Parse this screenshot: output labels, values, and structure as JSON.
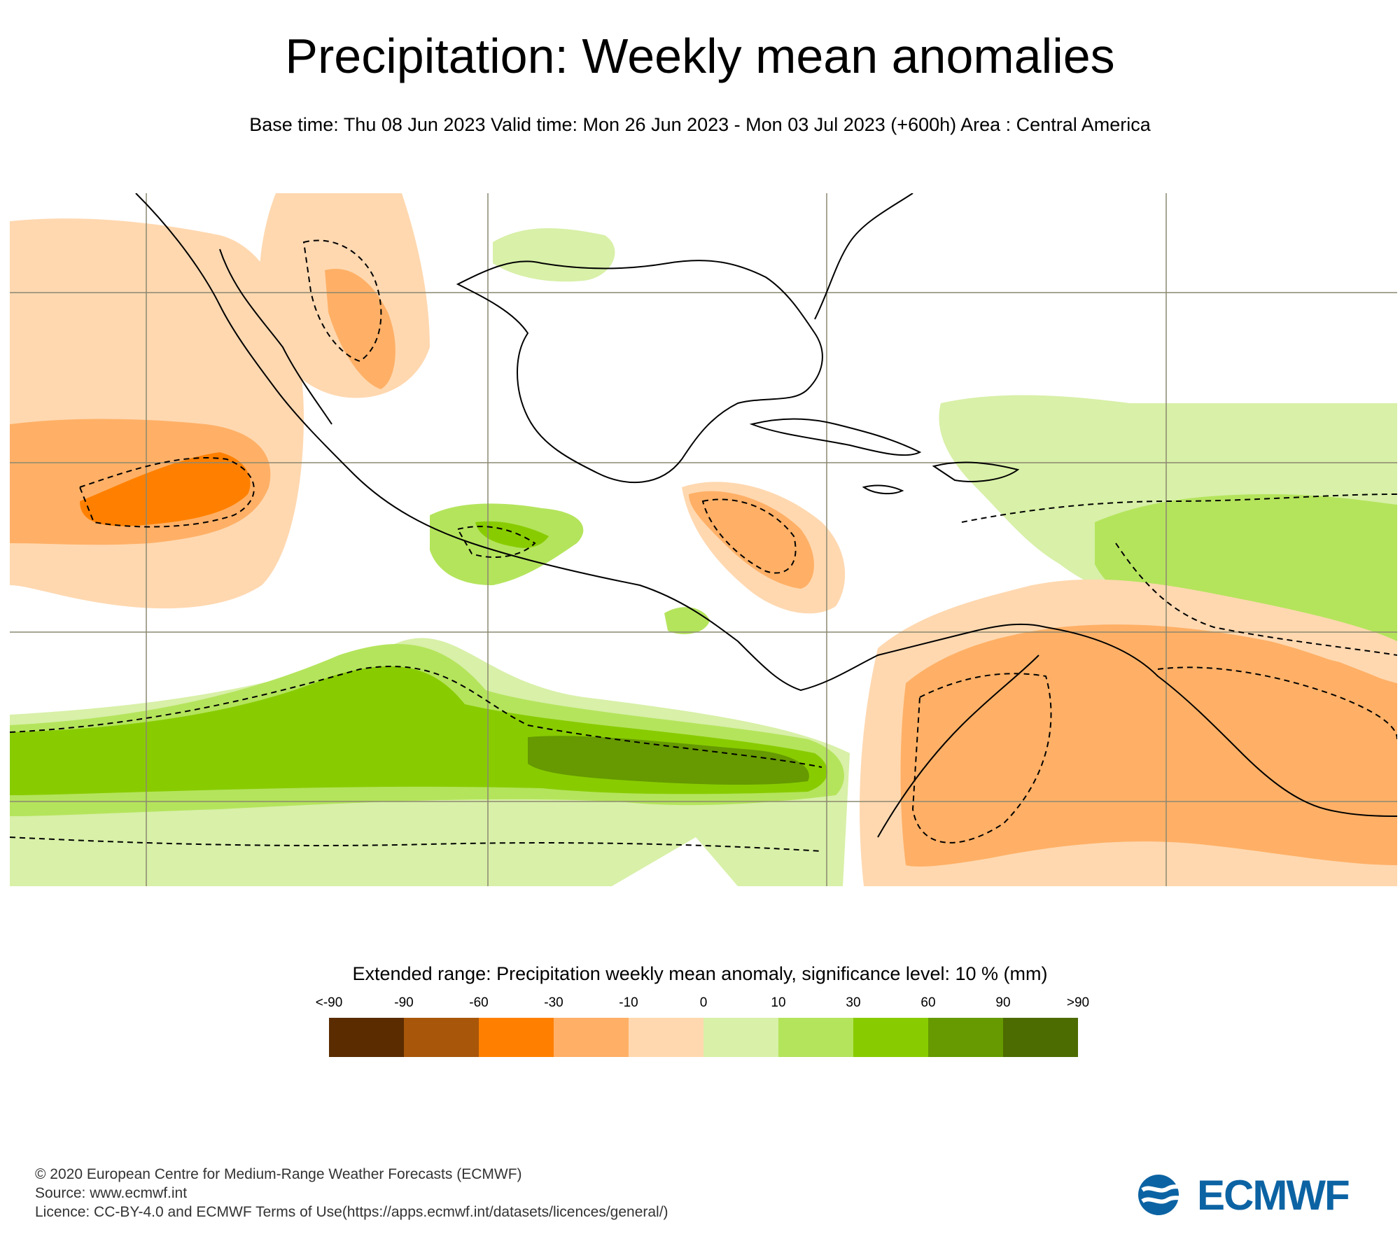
{
  "header": {
    "title": "Precipitation: Weekly mean anomalies",
    "subtitle": "Base time: Thu 08 Jun 2023 Valid time: Mon 26 Jun 2023 - Mon 03 Jul 2023 (+600h) Area : Central America"
  },
  "legend": {
    "title": "Extended range: Precipitation weekly mean anomaly, significance level: 10 % (mm)",
    "labels": [
      "<-90",
      "-90",
      "-60",
      "-30",
      "-10",
      "0",
      "10",
      "30",
      "60",
      "90",
      ">90"
    ],
    "colors": [
      "#5a2c00",
      "#a8560a",
      "#ff8000",
      "#ffb066",
      "#ffd8b0",
      "#d8f0a8",
      "#b4e45c",
      "#88cc00",
      "#669a00",
      "#4c6b00"
    ]
  },
  "colors": {
    "dry_light": "#ffd8b0",
    "dry_medium": "#ffb066",
    "dry_strong": "#ff8000",
    "wet_light": "#d8f0a8",
    "wet_medium": "#b4e45c",
    "wet_strong": "#88cc00",
    "wet_very": "#669a00",
    "coastline": "#000000",
    "grid": "#8c8870"
  },
  "footer": {
    "copyright": "© 2020 European Centre for Medium-Range Weather Forecasts (ECMWF)",
    "source": "Source: www.ecmwf.int",
    "licence": "Licence: CC-BY-4.0 and ECMWF Terms of Use(https://apps.ecmwf.int/datasets/licences/general/)"
  },
  "logo": {
    "text": "ECMWF"
  }
}
